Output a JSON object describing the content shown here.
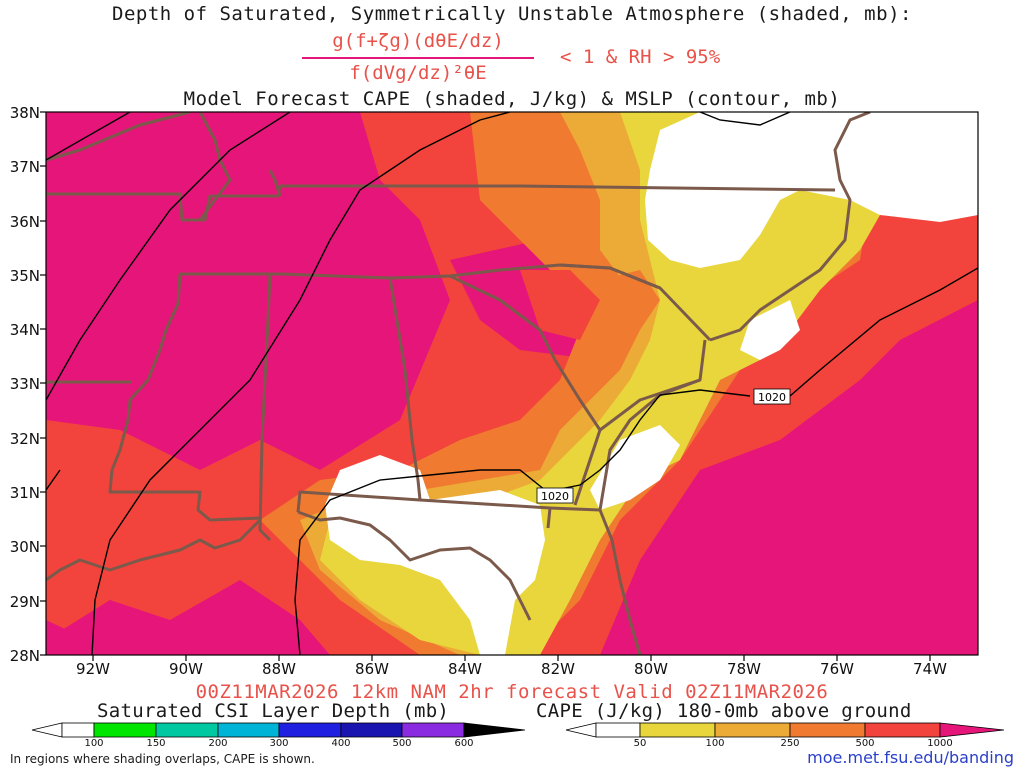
{
  "header": {
    "title": "Depth of Saturated, Symmetrically Unstable Atmosphere (shaded, mb):",
    "formula_numerator": "g(f+ζg)(dθE/dz)",
    "formula_denominator": "f(dVg/dz)²θE",
    "condition": "< 1 & RH > 95%",
    "subtitle": "Model Forecast CAPE (shaded, J/kg) & MSLP (contour, mb)"
  },
  "map": {
    "lat_labels": [
      "38N",
      "37N",
      "36N",
      "35N",
      "34N",
      "33N",
      "32N",
      "31N",
      "30N",
      "29N",
      "28N"
    ],
    "lon_labels": [
      "92W",
      "90W",
      "88W",
      "86W",
      "84W",
      "82W",
      "80W",
      "78W",
      "76W",
      "74W"
    ],
    "isobars": [
      {
        "label": "1020"
      },
      {
        "label": "1020"
      }
    ],
    "colors": {
      "cape_1000": "#e6157a",
      "cape_500": "#f2443c",
      "cape_250": "#f07a30",
      "cape_100": "#ecab36",
      "cape_50": "#e8d63c",
      "border": "#7b5a4b"
    }
  },
  "footer": {
    "valid": "00Z11MAR2026 12km NAM 2hr forecast Valid 02Z11MAR2026",
    "csi_colorbar": {
      "title": "Saturated CSI Layer Depth (mb)",
      "ticks": [
        "100",
        "150",
        "200",
        "300",
        "400",
        "500",
        "600"
      ],
      "colors": [
        "#ffffff",
        "#00e600",
        "#00c8a0",
        "#00b4d8",
        "#2020e0",
        "#1a14b0",
        "#8a2be2",
        "#000000"
      ]
    },
    "cape_colorbar": {
      "title": "CAPE (J/kg) 180-0mb above ground",
      "ticks": [
        "50",
        "100",
        "250",
        "500",
        "1000"
      ],
      "colors": [
        "#ffffff",
        "#e8d63c",
        "#ecab36",
        "#f07a30",
        "#f2443c",
        "#e6157a"
      ]
    },
    "note": "In regions where shading overlaps, CAPE is shown.",
    "url": "moe.met.fsu.edu/banding"
  }
}
